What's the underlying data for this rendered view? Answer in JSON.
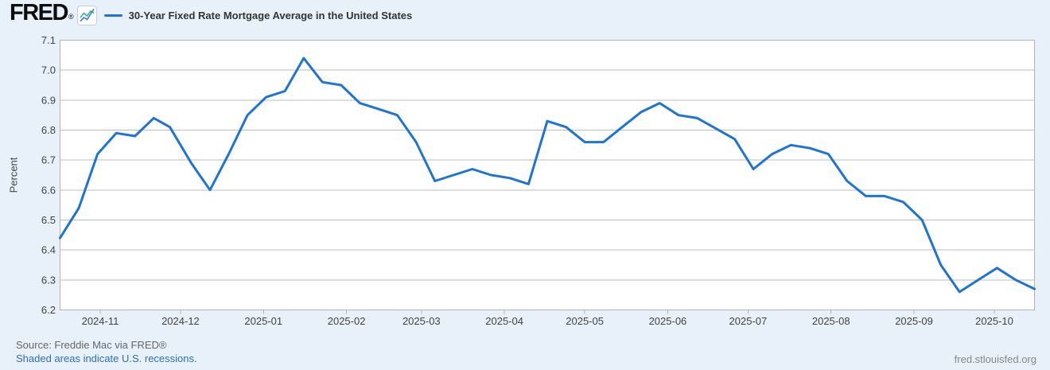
{
  "header": {
    "logo_text": "FRED",
    "registered_symbol": "®",
    "legend_label": "30-Year Fixed Rate Mortgage Average in the United States"
  },
  "footer": {
    "source": "Source: Freddie Mac via FRED®",
    "recessions_note": "Shaded areas indicate U.S. recessions.",
    "site": "fred.stlouisfed.org"
  },
  "colors": {
    "background": "#e8f1fa",
    "plot_background": "#ffffff",
    "line": "#1d74d6",
    "grid": "#bdbdbd",
    "axis_border": "#b3b3b3",
    "tick_label": "#424242",
    "link": "#2d6fb3",
    "logo_icon_teal": "#2fb5a3",
    "logo_icon_blue": "#3b7bd5"
  },
  "chart_data": {
    "type": "line",
    "title": "30-Year Fixed Rate Mortgage Average in the United States",
    "frequency": "weekly",
    "xlabel": "",
    "ylabel": "Percent",
    "ylim": [
      6.2,
      7.1
    ],
    "ytick_step": 0.1,
    "grid": true,
    "legend_position": "top-left",
    "xtick_labels": [
      "2024-11",
      "2024-12",
      "2025-01",
      "2025-02",
      "2025-03",
      "2025-04",
      "2025-05",
      "2025-06",
      "2025-07",
      "2025-08",
      "2025-09",
      "2025-10"
    ],
    "x": [
      "2024-10-17",
      "2024-10-24",
      "2024-10-31",
      "2024-11-07",
      "2024-11-14",
      "2024-11-21",
      "2024-11-27",
      "2024-12-05",
      "2024-12-12",
      "2024-12-19",
      "2024-12-26",
      "2025-01-02",
      "2025-01-09",
      "2025-01-16",
      "2025-01-23",
      "2025-01-30",
      "2025-02-06",
      "2025-02-13",
      "2025-02-20",
      "2025-02-27",
      "2025-03-06",
      "2025-03-13",
      "2025-03-20",
      "2025-03-27",
      "2025-04-03",
      "2025-04-10",
      "2025-04-17",
      "2025-04-24",
      "2025-05-01",
      "2025-05-08",
      "2025-05-15",
      "2025-05-22",
      "2025-05-29",
      "2025-06-05",
      "2025-06-12",
      "2025-06-18",
      "2025-06-26",
      "2025-07-03",
      "2025-07-10",
      "2025-07-17",
      "2025-07-24",
      "2025-07-31",
      "2025-08-07",
      "2025-08-14",
      "2025-08-21",
      "2025-08-28",
      "2025-09-04",
      "2025-09-11",
      "2025-09-18",
      "2025-09-25",
      "2025-10-02",
      "2025-10-09",
      "2025-10-16"
    ],
    "values": [
      6.44,
      6.54,
      6.72,
      6.79,
      6.78,
      6.84,
      6.81,
      6.69,
      6.6,
      6.72,
      6.85,
      6.91,
      6.93,
      7.04,
      6.96,
      6.95,
      6.89,
      6.87,
      6.85,
      6.76,
      6.63,
      6.65,
      6.67,
      6.65,
      6.64,
      6.62,
      6.83,
      6.81,
      6.76,
      6.76,
      6.81,
      6.86,
      6.89,
      6.85,
      6.84,
      6.81,
      6.77,
      6.67,
      6.72,
      6.75,
      6.74,
      6.72,
      6.63,
      6.58,
      6.58,
      6.56,
      6.5,
      6.35,
      6.26,
      6.3,
      6.34,
      6.3,
      6.27
    ]
  }
}
